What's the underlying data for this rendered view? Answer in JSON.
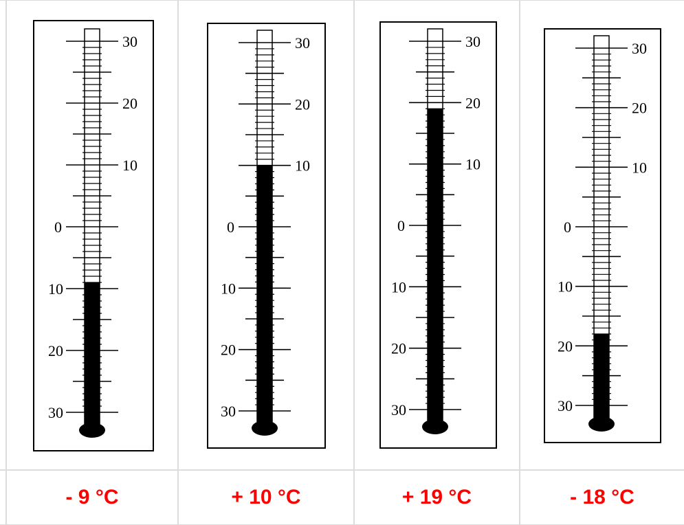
{
  "colors": {
    "caption": "#ff0000",
    "grid": "#dcdcdc",
    "mercury": "#000000",
    "frame": "#000000"
  },
  "scale": {
    "upper_labels": [
      "30",
      "20",
      "10"
    ],
    "zero_label": "0",
    "lower_labels": [
      "10",
      "20",
      "30"
    ]
  },
  "thermometers": [
    {
      "reading": -9,
      "caption": "- 9 °C"
    },
    {
      "reading": 10,
      "caption": "+ 10 °C"
    },
    {
      "reading": 19,
      "caption": "+ 19 °C"
    },
    {
      "reading": -18,
      "caption": "- 18 °C"
    }
  ]
}
